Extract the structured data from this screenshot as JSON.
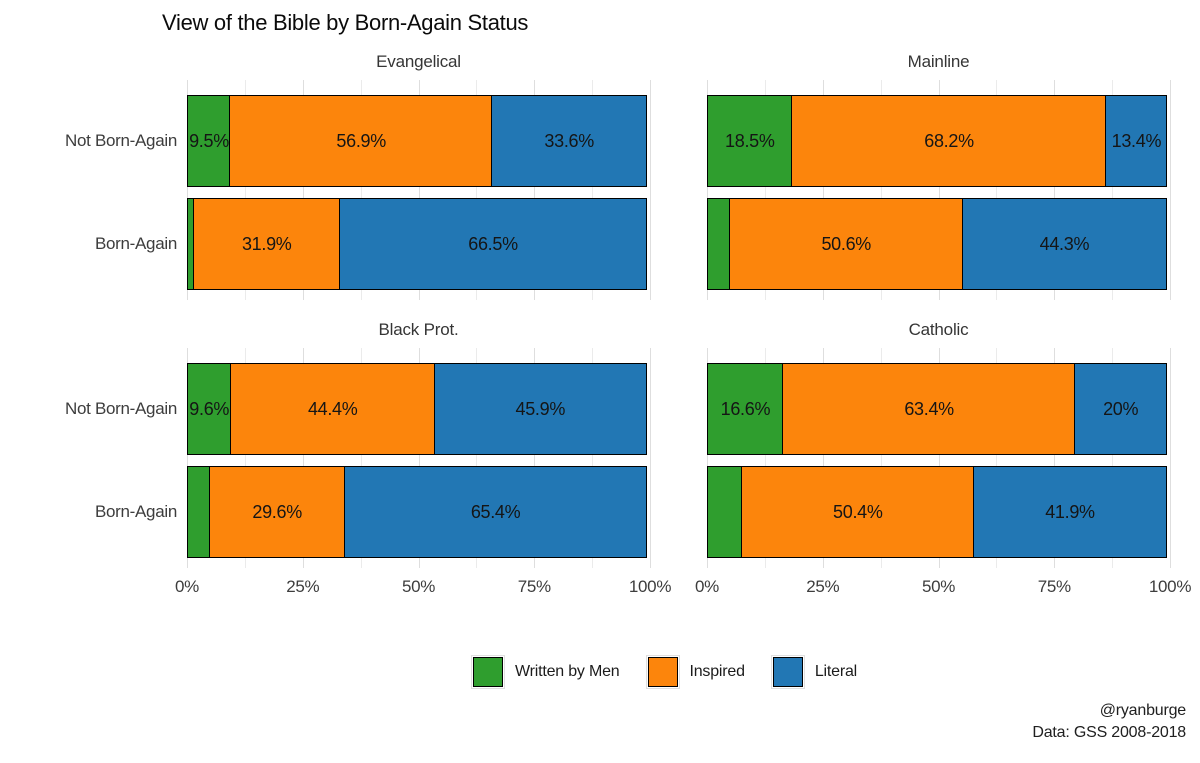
{
  "title": "View of the Bible by Born-Again Status",
  "caption": {
    "line1": "@ryanburge",
    "line2": "Data: GSS 2008-2018"
  },
  "colors": {
    "written_by_men": "#2f9e2e",
    "inspired": "#fc850c",
    "literal": "#2277b4"
  },
  "legend": {
    "items": [
      {
        "label": "Written by Men",
        "color": "#2f9e2e"
      },
      {
        "label": "Inspired",
        "color": "#fc850c"
      },
      {
        "label": "Literal",
        "color": "#2277b4"
      }
    ]
  },
  "axis": {
    "tick_labels": [
      "0%",
      "25%",
      "50%",
      "75%",
      "100%"
    ],
    "tick_values": [
      0,
      25,
      50,
      75,
      100
    ],
    "minor_every": 12.5,
    "major_every": 25
  },
  "chart_data": {
    "type": "bar",
    "stacked": true,
    "orientation": "horizontal",
    "title": "View of the Bible by Born-Again Status",
    "xlabel": "",
    "ylabel": "",
    "xlim": [
      0,
      100
    ],
    "grid": "vertical, major every 25%, minor every 12.5%",
    "legend_position": "bottom",
    "categories": [
      "Not Born-Again",
      "Born-Again"
    ],
    "series_names": [
      "Written by Men",
      "Inspired",
      "Literal"
    ],
    "facets": [
      {
        "title": "Evangelical",
        "rows": [
          {
            "category": "Not Born-Again",
            "values": [
              9.5,
              56.9,
              33.6
            ],
            "labels": [
              "9.5%",
              "56.9%",
              "33.6%"
            ]
          },
          {
            "category": "Born-Again",
            "values": [
              1.6,
              31.9,
              66.5
            ],
            "labels": [
              "",
              "31.9%",
              "66.5%"
            ]
          }
        ]
      },
      {
        "title": "Mainline",
        "rows": [
          {
            "category": "Not Born-Again",
            "values": [
              18.5,
              68.2,
              13.4
            ],
            "labels": [
              "18.5%",
              "68.2%",
              "13.4%"
            ]
          },
          {
            "category": "Born-Again",
            "values": [
              5.1,
              50.6,
              44.3
            ],
            "labels": [
              "",
              "50.6%",
              "44.3%"
            ]
          }
        ]
      },
      {
        "title": "Black Prot.",
        "rows": [
          {
            "category": "Not Born-Again",
            "values": [
              9.6,
              44.4,
              45.9
            ],
            "labels": [
              "9.6%",
              "44.4%",
              "45.9%"
            ]
          },
          {
            "category": "Born-Again",
            "values": [
              5.0,
              29.6,
              65.4
            ],
            "labels": [
              "",
              "29.6%",
              "65.4%"
            ]
          }
        ]
      },
      {
        "title": "Catholic",
        "rows": [
          {
            "category": "Not Born-Again",
            "values": [
              16.6,
              63.4,
              20.0
            ],
            "labels": [
              "16.6%",
              "63.4%",
              "20%"
            ]
          },
          {
            "category": "Born-Again",
            "values": [
              7.7,
              50.4,
              41.9
            ],
            "labels": [
              "",
              "50.4%",
              "41.9%"
            ]
          }
        ]
      }
    ]
  }
}
